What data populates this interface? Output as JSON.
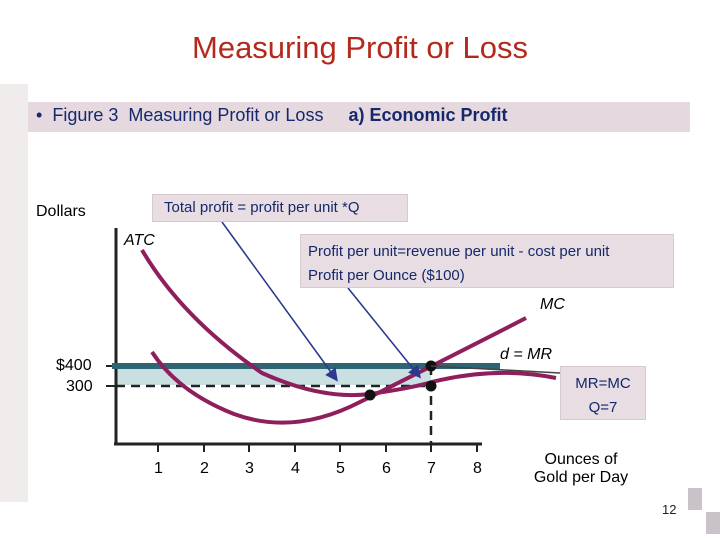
{
  "title": "Measuring Profit or Loss",
  "figure": {
    "bullet": "•",
    "caption": "Figure 3  Measuring Profit or Loss",
    "panel": "a) Economic Profit"
  },
  "y_axis_label": "Dollars",
  "x_axis_label_line1": "Ounces of",
  "x_axis_label_line2": "Gold per Day",
  "boxes": {
    "total_profit": "Total profit = profit per unit *Q",
    "profit_per_unit_line1": "Profit per unit=revenue per unit - cost per unit",
    "profit_per_unit_line2": "Profit per Ounce ($100)",
    "mr_mc_line1": "MR=MC",
    "mr_mc_line2": "Q=7"
  },
  "curve_labels": {
    "atc": "ATC",
    "mc": "MC",
    "demand": "d = MR"
  },
  "y_ticks": [
    {
      "label": "$400",
      "value": 400
    },
    {
      "label": "300",
      "value": 300
    }
  ],
  "x_ticks": [
    "1",
    "2",
    "3",
    "4",
    "5",
    "6",
    "7",
    "8"
  ],
  "page_number": "12",
  "colors": {
    "curve": "#8e1f5c",
    "demand_line": "#2f6474",
    "profit_area": "#c9dfe2",
    "arrow": "#2b3a8f",
    "title": "#b32a1c"
  },
  "chart_data": {
    "type": "line",
    "price": 400,
    "atc_at_q": 300,
    "profit_maximizing_q": 7,
    "atc_min_q": 5.5,
    "series": [
      {
        "name": "ATC"
      },
      {
        "name": "MC"
      },
      {
        "name": "d = MR"
      }
    ]
  }
}
